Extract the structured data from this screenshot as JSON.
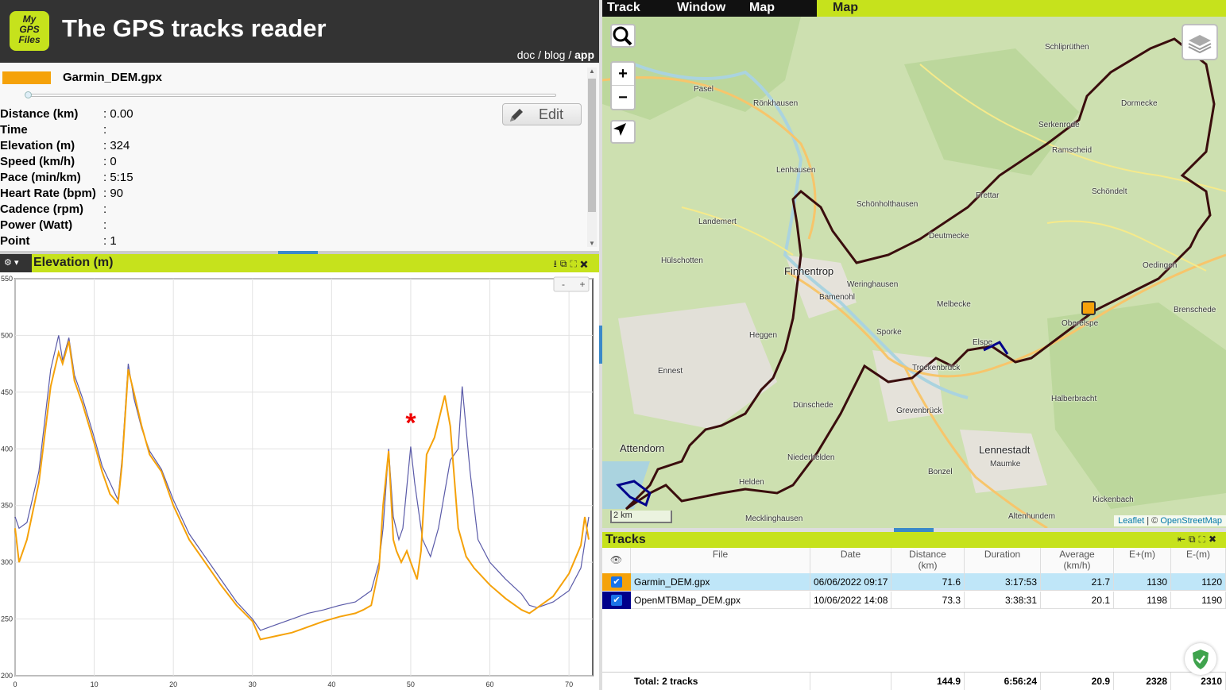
{
  "header": {
    "logo_lines": [
      "My",
      "GPS",
      "Files"
    ],
    "title": "The GPS tracks reader",
    "links": [
      {
        "label": "doc"
      },
      {
        "label": "blog"
      },
      {
        "label": "app"
      }
    ]
  },
  "info": {
    "file_name": "Garmin_DEM.gpx",
    "file_color": "#f5a20a",
    "edit_label": "Edit",
    "stats": [
      {
        "label": "Distance (km)",
        "value": "0.00"
      },
      {
        "label": "Time",
        "value": ""
      },
      {
        "label": "Elevation (m)",
        "value": "324"
      },
      {
        "label": "Speed (km/h)",
        "value": "0"
      },
      {
        "label": "Pace (min/km)",
        "value": "5:15"
      },
      {
        "label": "Heart Rate (bpm)",
        "value": "90"
      },
      {
        "label": "Cadence (rpm)",
        "value": ""
      },
      {
        "label": "Power (Watt)",
        "value": ""
      },
      {
        "label": "Point",
        "value": "1"
      }
    ]
  },
  "elevation_panel": {
    "title": "Elevation (m)",
    "zoom_minus": "-",
    "zoom_plus": "+"
  },
  "chart_data": {
    "type": "line",
    "title": "Elevation (m)",
    "xlim": [
      0,
      73
    ],
    "ylim": [
      200,
      550
    ],
    "x_ticks": [
      0,
      10,
      20,
      30,
      40,
      50,
      60,
      70
    ],
    "y_ticks": [
      200,
      250,
      300,
      350,
      400,
      450,
      500,
      550
    ],
    "grid": true,
    "annotation": "*",
    "series": [
      {
        "color": "#f5a20a",
        "x": [
          0,
          0.5,
          1.5,
          3,
          4.5,
          5.5,
          6,
          6.8,
          7.5,
          8.5,
          10,
          11,
          12,
          13,
          13.5,
          14.3,
          15,
          16,
          17,
          18.5,
          20,
          22,
          24,
          26,
          28,
          30,
          31,
          33,
          35,
          37,
          39,
          41,
          43,
          44,
          45,
          46,
          46.5,
          47.2,
          47.8,
          48.2,
          48.8,
          49.5,
          50,
          50.8,
          51.3,
          52,
          53,
          54.3,
          55,
          56,
          57,
          58,
          60,
          62,
          64,
          65,
          66,
          68,
          70,
          71.5,
          72,
          72.5
        ],
        "y": [
          330,
          300,
          320,
          370,
          455,
          485,
          475,
          495,
          460,
          440,
          405,
          380,
          360,
          352,
          385,
          470,
          450,
          420,
          395,
          380,
          350,
          320,
          300,
          280,
          262,
          248,
          232,
          235,
          238,
          243,
          248,
          252,
          255,
          258,
          262,
          295,
          350,
          398,
          320,
          310,
          300,
          310,
          300,
          285,
          310,
          395,
          410,
          447,
          420,
          330,
          305,
          295,
          280,
          268,
          258,
          255,
          260,
          270,
          290,
          315,
          340,
          320
        ]
      },
      {
        "color": "#5a5aa8",
        "x": [
          0,
          0.5,
          1.5,
          3,
          4.5,
          5.5,
          6,
          6.8,
          7.5,
          8.5,
          10,
          11,
          12,
          13,
          13.5,
          14.3,
          15,
          16,
          17,
          18.5,
          20,
          22,
          24,
          26,
          28,
          30,
          31,
          33,
          35,
          37,
          39,
          41,
          43,
          44,
          45,
          46,
          46.5,
          47.2,
          47.8,
          48.5,
          49,
          50,
          50.5,
          51.5,
          52.5,
          53.5,
          55,
          56,
          56.5,
          57.5,
          58.5,
          60,
          62,
          64,
          65,
          66,
          68,
          70,
          71.5,
          72.5
        ],
        "y": [
          340,
          330,
          335,
          380,
          470,
          500,
          478,
          498,
          465,
          445,
          410,
          385,
          370,
          355,
          390,
          475,
          445,
          418,
          398,
          382,
          355,
          325,
          305,
          285,
          265,
          250,
          240,
          245,
          250,
          255,
          258,
          262,
          265,
          270,
          275,
          300,
          330,
          400,
          340,
          320,
          330,
          402,
          370,
          320,
          305,
          330,
          390,
          400,
          455,
          380,
          320,
          300,
          285,
          272,
          262,
          260,
          265,
          275,
          295,
          340
        ]
      }
    ]
  },
  "tabs": {
    "items": [
      "Track",
      "Window",
      "Map"
    ],
    "panel_title": "Map"
  },
  "map": {
    "zoom_in": "+",
    "zoom_out": "−",
    "scale": "2 km",
    "attribution_leaflet": "Leaflet",
    "attribution_sep": " | © ",
    "attribution_osm": "OpenStreetMap",
    "places": [
      {
        "name": "Schliprüthen",
        "big": false
      },
      {
        "name": "Pasel",
        "big": false
      },
      {
        "name": "Rönkhausen",
        "big": false
      },
      {
        "name": "Dormecke",
        "big": false
      },
      {
        "name": "Serkenrode",
        "big": false
      },
      {
        "name": "Ramscheid",
        "big": false
      },
      {
        "name": "Lenhausen",
        "big": false
      },
      {
        "name": "Frettar",
        "big": false
      },
      {
        "name": "Schönholthausen",
        "big": false
      },
      {
        "name": "Schöndelt",
        "big": false
      },
      {
        "name": "Landemert",
        "big": false
      },
      {
        "name": "Deutmecke",
        "big": false
      },
      {
        "name": "Hülschotten",
        "big": false
      },
      {
        "name": "Finnentrop",
        "big": true
      },
      {
        "name": "Weringhausen",
        "big": false
      },
      {
        "name": "Oedingen",
        "big": false
      },
      {
        "name": "Bamenohl",
        "big": false
      },
      {
        "name": "Melbecke",
        "big": false
      },
      {
        "name": "Brenschede",
        "big": false
      },
      {
        "name": "Oberelspe",
        "big": false
      },
      {
        "name": "Heggen",
        "big": false
      },
      {
        "name": "Sporke",
        "big": false
      },
      {
        "name": "Elspe",
        "big": false
      },
      {
        "name": "Ennest",
        "big": false
      },
      {
        "name": "Trockenbrück",
        "big": false
      },
      {
        "name": "Halberbracht",
        "big": false
      },
      {
        "name": "Dünschede",
        "big": false
      },
      {
        "name": "Grevenbrück",
        "big": false
      },
      {
        "name": "Attendorn",
        "big": true
      },
      {
        "name": "Lennestadt",
        "big": true
      },
      {
        "name": "Maumke",
        "big": false
      },
      {
        "name": "Niederhelden",
        "big": false
      },
      {
        "name": "Bonzel",
        "big": false
      },
      {
        "name": "Helden",
        "big": false
      },
      {
        "name": "Kickenbach",
        "big": false
      },
      {
        "name": "Mecklinghausen",
        "big": false
      },
      {
        "name": "Altenhundem",
        "big": false
      }
    ]
  },
  "tracks": {
    "title": "Tracks",
    "columns": [
      "File",
      "Date",
      "Distance\n(km)",
      "Duration",
      "Average\n(km/h)",
      "E+(m)",
      "E-(m)"
    ],
    "rows": [
      {
        "color": "#f5a20a",
        "file": "Garmin_DEM.gpx",
        "date": "06/06/2022 09:17",
        "distance": "71.6",
        "duration": "3:17:53",
        "average": "21.7",
        "eplus": "1130",
        "eminus": "1120",
        "selected": true
      },
      {
        "color": "#00008b",
        "file": "OpenMTBMap_DEM.gpx",
        "date": "10/06/2022 14:08",
        "distance": "73.3",
        "duration": "3:38:31",
        "average": "20.1",
        "eplus": "1198",
        "eminus": "1190",
        "selected": false
      }
    ],
    "total": {
      "label": "Total: 2 tracks",
      "distance": "144.9",
      "duration": "6:56:24",
      "average": "20.9",
      "eplus": "2328",
      "eminus": "2310"
    }
  }
}
